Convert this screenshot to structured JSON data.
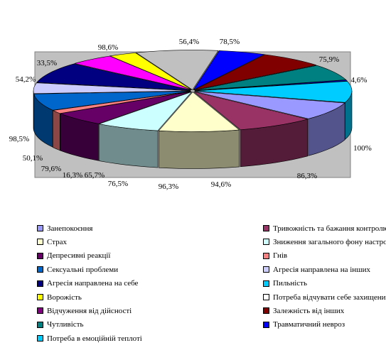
{
  "chart_data": {
    "type": "pie",
    "style": "3d-exploded",
    "title": "",
    "value_labels": [
      "56,4%",
      "78,5%",
      "75,9%",
      "4,6%",
      "100%",
      "86,3%",
      "94,6%",
      "96,3%",
      "76,5%",
      "65,7%",
      "16,3%",
      "79,6%",
      "50,1%",
      "98,5%",
      "54,2%",
      "33,5%",
      "98,6%"
    ],
    "slices": [
      {
        "label": "Пильність",
        "value": 100,
        "color": "#00CCFF"
      },
      {
        "label": "Занепокоєння",
        "value": 86.3,
        "color": "#9999FF"
      },
      {
        "label": "Тривожність та бажання контролю",
        "value": 94.6,
        "color": "#993366"
      },
      {
        "label": "Страх",
        "value": 96.3,
        "color": "#FFFFCC"
      },
      {
        "label": "Зниження загального фону настрою",
        "value": 76.5,
        "color": "#CCFFFF"
      },
      {
        "label": "Депресивні реакції",
        "value": 65.7,
        "color": "#660066"
      },
      {
        "label": "Гнів",
        "value": 16.3,
        "color": "#FF8080"
      },
      {
        "label": "Сексуальні проблеми",
        "value": 79.6,
        "color": "#0066CC"
      },
      {
        "label": "Агресія направлена на інших",
        "value": 50.1,
        "color": "#CCCCFF"
      },
      {
        "label": "Агресія направлена на себе",
        "value": 98.5,
        "color": "#000080"
      },
      {
        "label": "Відчуження від дійсності",
        "value": 54.2,
        "color": "#FF00FF"
      },
      {
        "label": "Ворожість",
        "value": 33.5,
        "color": "#FFFF00"
      },
      {
        "label": "Потреба відчувати себе захищеним",
        "value": 98.6,
        "color": "#C0C0C0"
      },
      {
        "label": "Травматичний невроз",
        "value": 56.4,
        "color": "#0000FF"
      },
      {
        "label": "Залежність від інших",
        "value": 78.5,
        "color": "#800000"
      },
      {
        "label": "Чутливість",
        "value": 75.9,
        "color": "#008080"
      },
      {
        "label": "Потреба в емоційній теплоті",
        "value": 4.6,
        "color": "#0000FF"
      }
    ],
    "legend": [
      {
        "label": "Занепокоєння",
        "color": "#9999FF"
      },
      {
        "label": "Тривожність та бажання контролю",
        "color": "#993366"
      },
      {
        "label": "Страх",
        "color": "#FFFFCC"
      },
      {
        "label": "Зниження загального фону настрою",
        "color": "#CCFFFF"
      },
      {
        "label": "Депресивні реакції",
        "color": "#660066"
      },
      {
        "label": "Гнів",
        "color": "#FF8080"
      },
      {
        "label": "Сексуальні проблеми",
        "color": "#0066CC"
      },
      {
        "label": "Агресія направлена на інших",
        "color": "#CCCCFF"
      },
      {
        "label": "Агресія направлена на себе",
        "color": "#000080"
      },
      {
        "label": "Пильність",
        "color": "#00CCFF"
      },
      {
        "label": "Ворожість",
        "color": "#FFFF00"
      },
      {
        "label": "Потреба відчувати себе захищеним",
        "color": "#FFFFFF"
      },
      {
        "label": "Відчуження від дійсності",
        "color": "#800080"
      },
      {
        "label": "Залежність від інших",
        "color": "#800000"
      },
      {
        "label": "Чутливість",
        "color": "#008080"
      },
      {
        "label": "Травматичний невроз",
        "color": "#0000FF"
      },
      {
        "label": "Потреба в емоційній теплоті",
        "color": "#00CCFF"
      }
    ],
    "legend_placement": "bottom",
    "plot_background": "#C0C0C0",
    "grid": false
  }
}
